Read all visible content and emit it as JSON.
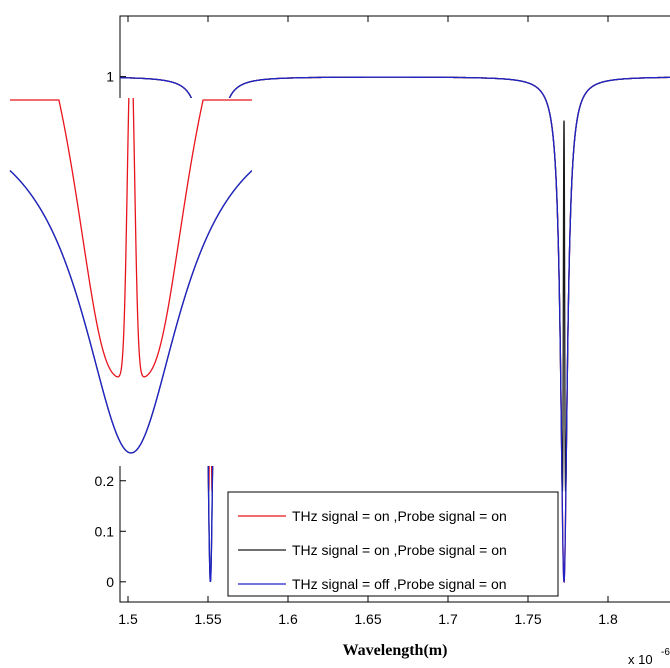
{
  "chart_data": {
    "type": "line",
    "xlabel": "Wavelength(m)",
    "ylabel": "",
    "x_exponent_label": "x 10",
    "x_exponent_power": "-6",
    "xlim": [
      1.495,
      1.845
    ],
    "ylim": [
      -0.04,
      1.12
    ],
    "x_ticks": [
      1.5,
      1.55,
      1.6,
      1.65,
      1.7,
      1.75,
      1.8
    ],
    "x_tick_labels": [
      "1.5",
      "1.55",
      "1.6",
      "1.65",
      "1.7",
      "1.75",
      "1.8"
    ],
    "y_ticks_visible": [
      0,
      0.1,
      0.2,
      1
    ],
    "y_tick_labels": [
      "0",
      "0.1",
      "0.2",
      "1"
    ],
    "grid": false,
    "legend_position": "bottom-center",
    "series": [
      {
        "name": "THz signal = on ,Probe signal = on",
        "color": "#e8141c",
        "dips": [
          {
            "center": 1.5515,
            "width": 0.0025,
            "depth": 1.0,
            "peak_center": 1.5515,
            "peak_height": 0.92,
            "peak_width": 0.0004
          },
          {
            "center": 1.7725,
            "width": 0.0025,
            "depth": 1.0
          }
        ]
      },
      {
        "name": "THz signal = on ,Probe signal = on",
        "color": "#1a1a1a",
        "dips": [
          {
            "center": 1.5515,
            "width": 0.0025,
            "depth": 1.0
          },
          {
            "center": 1.7725,
            "width": 0.0025,
            "depth": 1.0,
            "peak_center": 1.7725,
            "peak_height": 0.92,
            "peak_width": 0.0004
          }
        ]
      },
      {
        "name": "THz signal = off ,Probe signal = on",
        "color": "#1f24c8",
        "dips": [
          {
            "center": 1.5515,
            "width": 0.0025,
            "depth": 1.0
          },
          {
            "center": 1.7725,
            "width": 0.0025,
            "depth": 1.0
          }
        ]
      }
    ],
    "inset": {
      "x_range": [
        1.5455,
        1.5575
      ],
      "y_range": [
        -0.02,
        1.0
      ],
      "axes_visible": false
    }
  }
}
